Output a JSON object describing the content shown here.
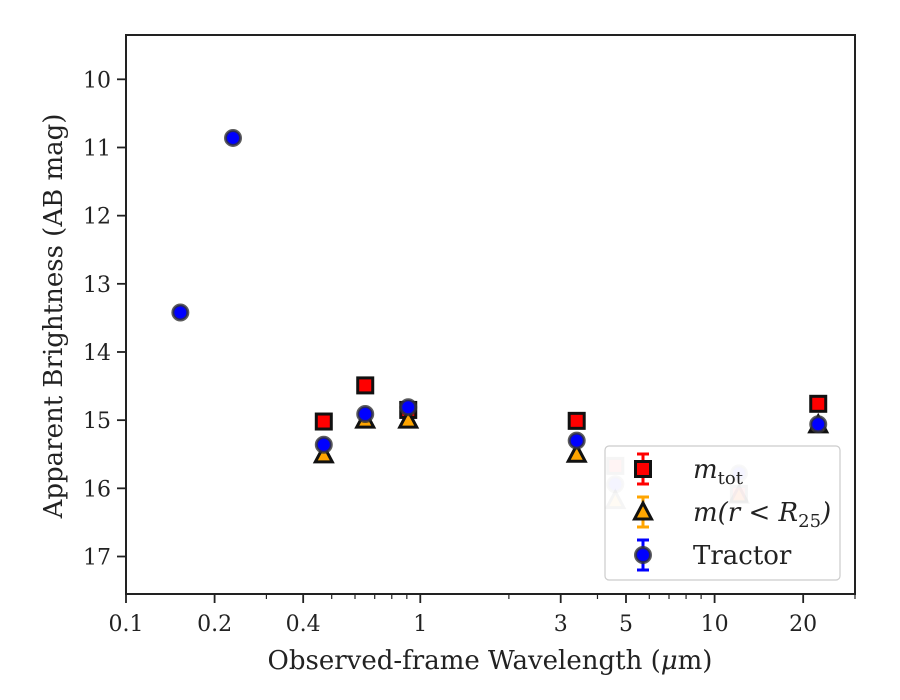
{
  "chart_data": {
    "type": "scatter",
    "title": "",
    "xlabel_parts": [
      "Observed-frame Wavelength (",
      "μ",
      "m)"
    ],
    "ylabel": "Apparent Brightness (AB mag)",
    "x_scale": "log",
    "xlim": [
      0.1,
      30
    ],
    "ylim": [
      17.55,
      9.35
    ],
    "y_inverted": true,
    "grid": false,
    "legend_position": "lower-right",
    "x_ticks": [
      {
        "value": 0.1,
        "label": "0.1"
      },
      {
        "value": 0.2,
        "label": "0.2"
      },
      {
        "value": 0.4,
        "label": "0.4"
      },
      {
        "value": 1,
        "label": "1"
      },
      {
        "value": 3,
        "label": "3"
      },
      {
        "value": 5,
        "label": "5"
      },
      {
        "value": 10,
        "label": "10"
      },
      {
        "value": 20,
        "label": "20"
      }
    ],
    "y_ticks": [
      {
        "value": 10,
        "label": "10"
      },
      {
        "value": 11,
        "label": "11"
      },
      {
        "value": 12,
        "label": "12"
      },
      {
        "value": 13,
        "label": "13"
      },
      {
        "value": 14,
        "label": "14"
      },
      {
        "value": 15,
        "label": "15"
      },
      {
        "value": 16,
        "label": "16"
      },
      {
        "value": 17,
        "label": "17"
      }
    ],
    "series": [
      {
        "name": "m_tot",
        "legend_main": "m",
        "legend_sub": "tot",
        "marker": "square",
        "color": "#ff0000",
        "edge": "#111111",
        "points": [
          {
            "x": 0.47,
            "y": 15.02
          },
          {
            "x": 0.65,
            "y": 14.49
          },
          {
            "x": 0.91,
            "y": 14.85
          },
          {
            "x": 3.4,
            "y": 15.01
          },
          {
            "x": 4.6,
            "y": 15.67,
            "faded": true
          },
          {
            "x": 12.1,
            "y": 16.08,
            "faded": true
          },
          {
            "x": 22.5,
            "y": 14.76
          }
        ]
      },
      {
        "name": "m(r < R25)",
        "legend_main": "m(r < R",
        "legend_sub": "25",
        "legend_end": ")",
        "marker": "triangle",
        "color": "#ffa500",
        "edge": "#111111",
        "points": [
          {
            "x": 0.47,
            "y": 15.51
          },
          {
            "x": 0.65,
            "y": 15.0
          },
          {
            "x": 0.91,
            "y": 15.0
          },
          {
            "x": 3.4,
            "y": 15.5
          },
          {
            "x": 4.6,
            "y": 16.18,
            "faded": true
          },
          {
            "x": 12.1,
            "y": 16.1,
            "faded": true
          },
          {
            "x": 22.5,
            "y": 15.07
          }
        ]
      },
      {
        "name": "Tractor",
        "legend_main": "Tractor",
        "marker": "circle",
        "color": "#0000ff",
        "edge": "#333333",
        "points": [
          {
            "x": 0.153,
            "y": 13.42
          },
          {
            "x": 0.231,
            "y": 10.86
          },
          {
            "x": 0.47,
            "y": 15.36
          },
          {
            "x": 0.65,
            "y": 14.91
          },
          {
            "x": 0.91,
            "y": 14.81
          },
          {
            "x": 3.4,
            "y": 15.3
          },
          {
            "x": 4.6,
            "y": 15.94,
            "faded": true
          },
          {
            "x": 12.1,
            "y": 15.78,
            "faded": true
          },
          {
            "x": 22.5,
            "y": 15.06
          }
        ]
      }
    ]
  }
}
